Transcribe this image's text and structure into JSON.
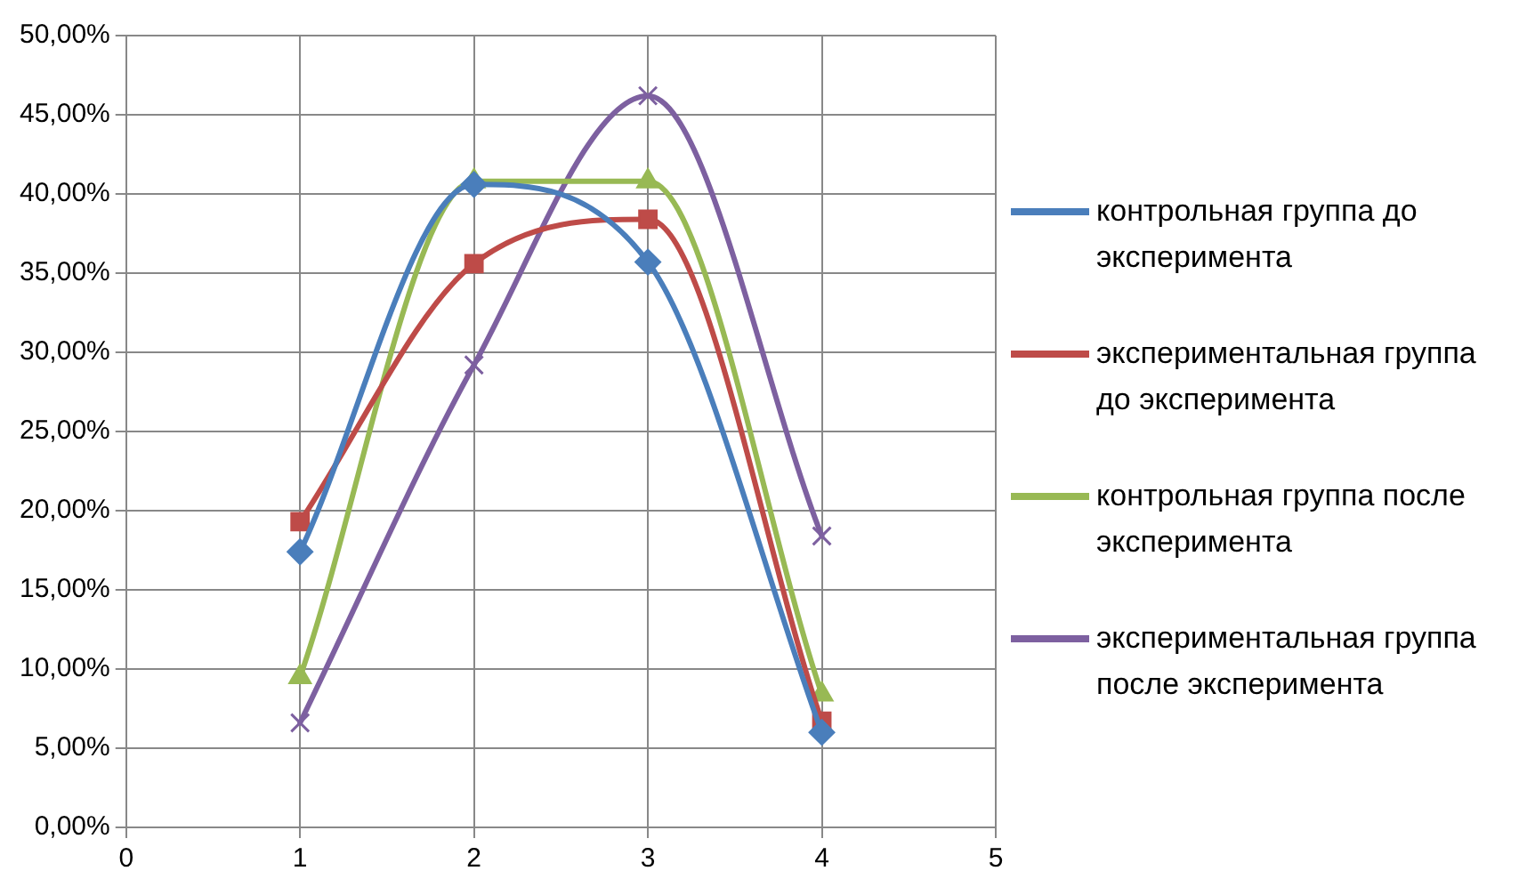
{
  "chart_data": {
    "type": "line",
    "x": [
      1,
      2,
      3,
      4
    ],
    "xlim": [
      0,
      5
    ],
    "xticks": [
      0,
      1,
      2,
      3,
      4,
      5
    ],
    "ylim": [
      0,
      50
    ],
    "yticks": [
      {
        "value": 0,
        "label": "0,00%"
      },
      {
        "value": 5,
        "label": "5,00%"
      },
      {
        "value": 10,
        "label": "10,00%"
      },
      {
        "value": 15,
        "label": "15,00%"
      },
      {
        "value": 20,
        "label": "20,00%"
      },
      {
        "value": 25,
        "label": "25,00%"
      },
      {
        "value": 30,
        "label": "30,00%"
      },
      {
        "value": 35,
        "label": "35,00%"
      },
      {
        "value": 40,
        "label": "40,00%"
      },
      {
        "value": 45,
        "label": "45,00%"
      },
      {
        "value": 50,
        "label": "50,00%"
      }
    ],
    "grid": true,
    "legend": "right",
    "line_style": "solid",
    "series": [
      {
        "name": "контрольная группа до эксперимента",
        "color": "#4a7ebb",
        "marker": "diamond",
        "values": [
          17.4,
          40.6,
          35.7,
          6.0
        ]
      },
      {
        "name": "экспериментальная группа до эксперимента",
        "color": "#be4b48",
        "marker": "square",
        "values": [
          19.3,
          35.6,
          38.4,
          6.7
        ]
      },
      {
        "name": "контрольная группа после эксперимента",
        "color": "#98b954",
        "marker": "triangle",
        "values": [
          9.5,
          40.8,
          40.8,
          8.4
        ]
      },
      {
        "name": "экспериментальная группа после эксперимента",
        "color": "#7d60a0",
        "marker": "cross",
        "values": [
          6.6,
          29.2,
          46.2,
          18.4
        ]
      }
    ]
  }
}
